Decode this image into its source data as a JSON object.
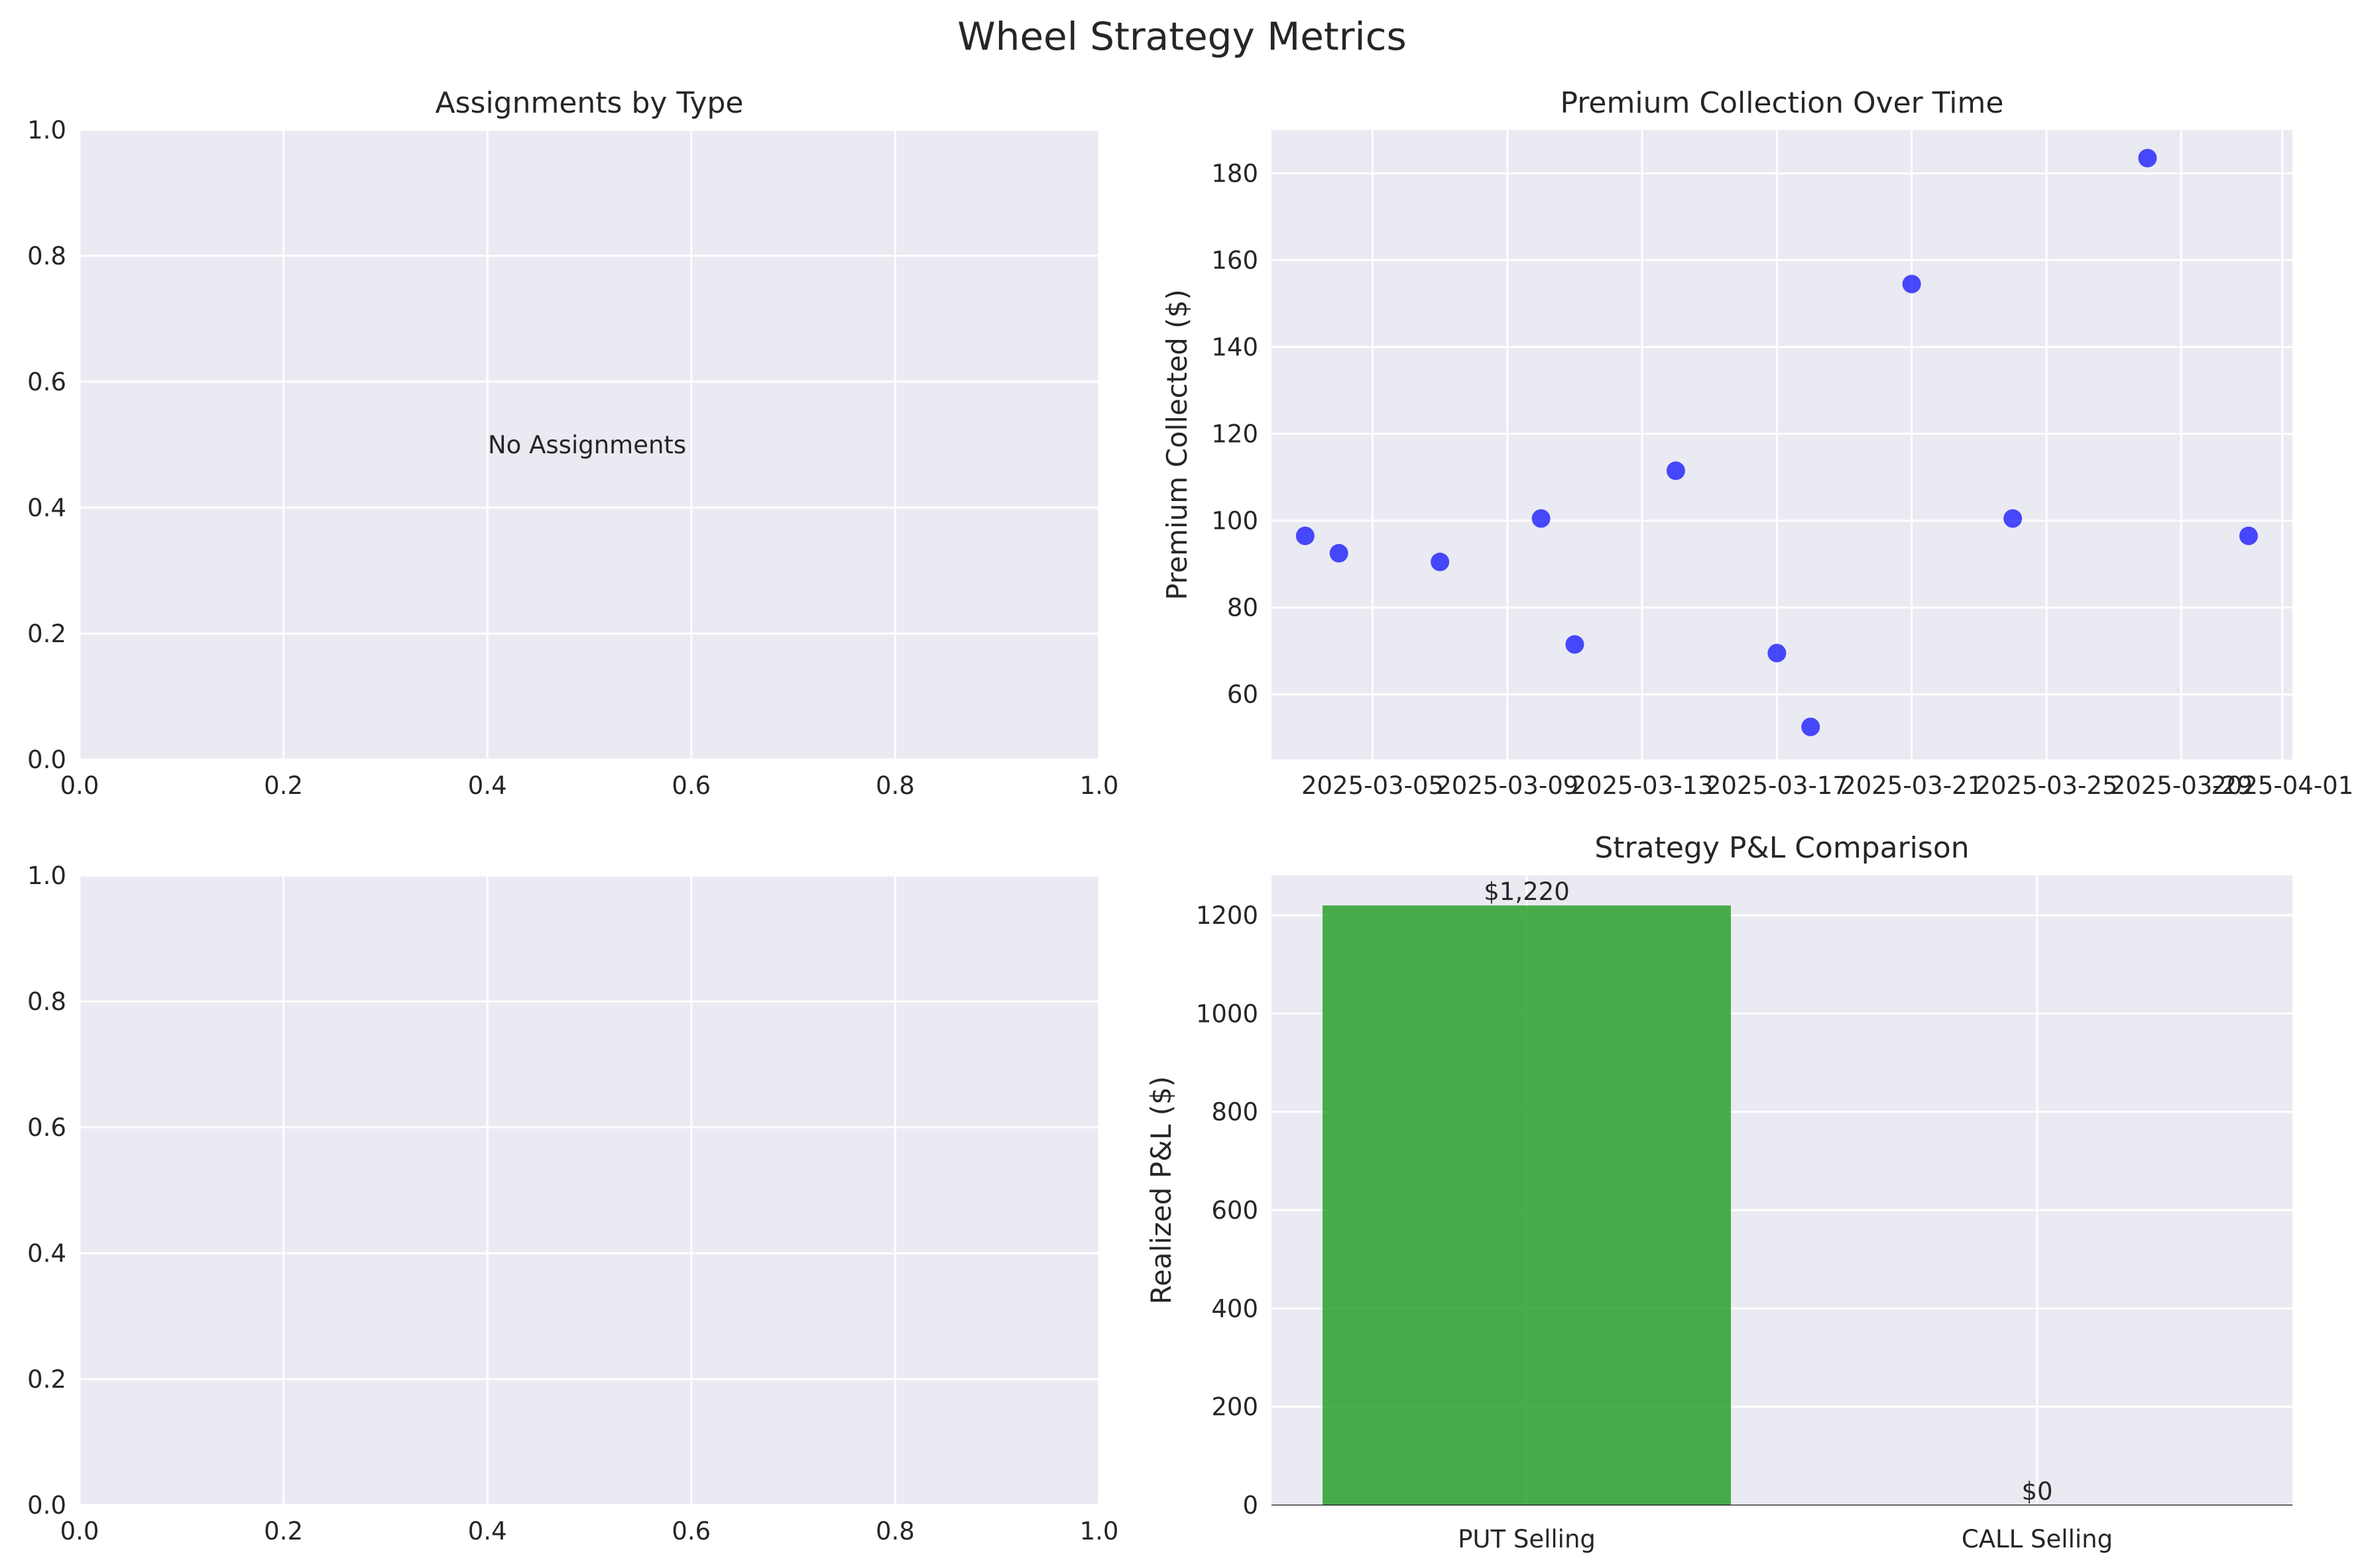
{
  "figure": {
    "title": "Wheel Strategy Metrics",
    "colors": {
      "axes_bg": "#eaeaf2",
      "grid": "#ffffff",
      "scatter": "#0000ff",
      "bar": "#2ca02c",
      "zero_line": "#000000"
    }
  },
  "chart_data": [
    {
      "type": "bar",
      "title": "Assignments by Type",
      "xlim": [
        0,
        1
      ],
      "ylim": [
        0,
        1
      ],
      "xticks": [
        "0.0",
        "0.2",
        "0.4",
        "0.6",
        "0.8",
        "1.0"
      ],
      "yticks": [
        "0.0",
        "0.2",
        "0.4",
        "0.6",
        "0.8",
        "1.0"
      ],
      "annotation": {
        "text": "No Assignments",
        "x": 0.5,
        "y": 0.5
      },
      "grid": true
    },
    {
      "type": "scatter",
      "title": "Premium Collection Over Time",
      "xlabel": "",
      "ylabel": "Premium Collected ($)",
      "x": [
        "2025-03-03",
        "2025-03-04",
        "2025-03-07",
        "2025-03-10",
        "2025-03-11",
        "2025-03-14",
        "2025-03-17",
        "2025-03-18",
        "2025-03-21",
        "2025-03-24",
        "2025-03-28",
        "2025-03-31"
      ],
      "y": [
        96.5,
        92.5,
        90.5,
        100.5,
        71.5,
        111.5,
        69.5,
        52.5,
        154.5,
        100.5,
        183.5,
        96.5
      ],
      "xlim": [
        "2025-03-02",
        "2025-04-01"
      ],
      "ylim": [
        45,
        190
      ],
      "xticks": [
        "2025-03-05",
        "2025-03-09",
        "2025-03-13",
        "2025-03-17",
        "2025-03-21",
        "2025-03-25",
        "2025-03-29",
        "2025-04-01"
      ],
      "yticks": [
        60,
        80,
        100,
        120,
        140,
        160,
        180
      ],
      "grid": true
    },
    {
      "type": "bar",
      "title": "",
      "xlim": [
        0,
        1
      ],
      "ylim": [
        0,
        1
      ],
      "xticks": [
        "0.0",
        "0.2",
        "0.4",
        "0.6",
        "0.8",
        "1.0"
      ],
      "yticks": [
        "0.0",
        "0.2",
        "0.4",
        "0.6",
        "0.8",
        "1.0"
      ],
      "grid": true
    },
    {
      "type": "bar",
      "title": "Strategy P&L Comparison",
      "xlabel": "",
      "ylabel": "Realized P&L ($)",
      "categories": [
        "PUT Selling",
        "CALL Selling"
      ],
      "values": [
        1220,
        0
      ],
      "value_labels": [
        "$1,220",
        "$0"
      ],
      "ylim": [
        0,
        1281
      ],
      "yticks": [
        0,
        200,
        400,
        600,
        800,
        1000,
        1200
      ],
      "grid": true
    }
  ]
}
